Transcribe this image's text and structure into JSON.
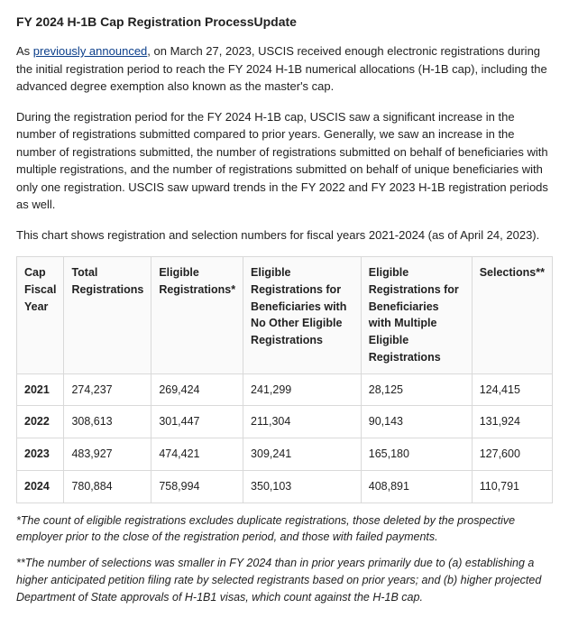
{
  "title": "FY 2024 H-1B Cap Registration ProcessUpdate",
  "intro": {
    "prefix": "As ",
    "link_text": "previously announced",
    "suffix": ", on March 27, 2023, USCIS received enough electronic registrations during the initial registration period to reach the FY 2024 H-1B numerical allocations (H-1B cap), including the advanced degree exemption also known as the master's cap."
  },
  "para2": "During the registration period for the FY 2024 H-1B cap, USCIS saw a significant increase in the number of registrations submitted compared to prior years. Generally, we saw an increase in the number of registrations submitted, the number of registrations submitted on behalf of beneficiaries with multiple registrations, and the number of registrations submitted on behalf of unique beneficiaries with only one registration. USCIS saw upward trends in the FY 2022 and FY 2023 H-1B registration periods as well.",
  "para3": "This chart shows registration and selection numbers for fiscal years 2021-2024 (as of April 24, 2023).",
  "table": {
    "columns": [
      "Cap Fiscal Year",
      "Total Registrations",
      "Eligible Registrations*",
      "Eligible Registrations for Beneficiaries with No Other Eligible Registrations",
      "Eligible Registrations for Beneficiaries with Multiple Eligible Registrations",
      "Selections**"
    ],
    "col_widths": [
      "7%",
      "15%",
      "16%",
      "25%",
      "23%",
      "14%"
    ],
    "rows": [
      [
        "2021",
        "274,237",
        "269,424",
        "241,299",
        "28,125",
        "124,415"
      ],
      [
        "2022",
        "308,613",
        "301,447",
        "211,304",
        "90,143",
        "131,924"
      ],
      [
        "2023",
        "483,927",
        "474,421",
        "309,241",
        "165,180",
        "127,600"
      ],
      [
        "2024",
        "780,884",
        "758,994",
        "350,103",
        "408,891",
        "110,791"
      ]
    ]
  },
  "footnote1": "*The count of eligible registrations excludes duplicate registrations, those deleted by the prospective employer prior to the close of the registration period, and those with failed payments.",
  "footnote2": "**The number of selections was smaller in FY 2024 than in prior years primarily due to (a) establishing a higher anticipated petition filing rate by selected registrants based on prior years; and (b) higher projected Department of State approvals of H-1B1 visas, which count against the H-1B cap."
}
